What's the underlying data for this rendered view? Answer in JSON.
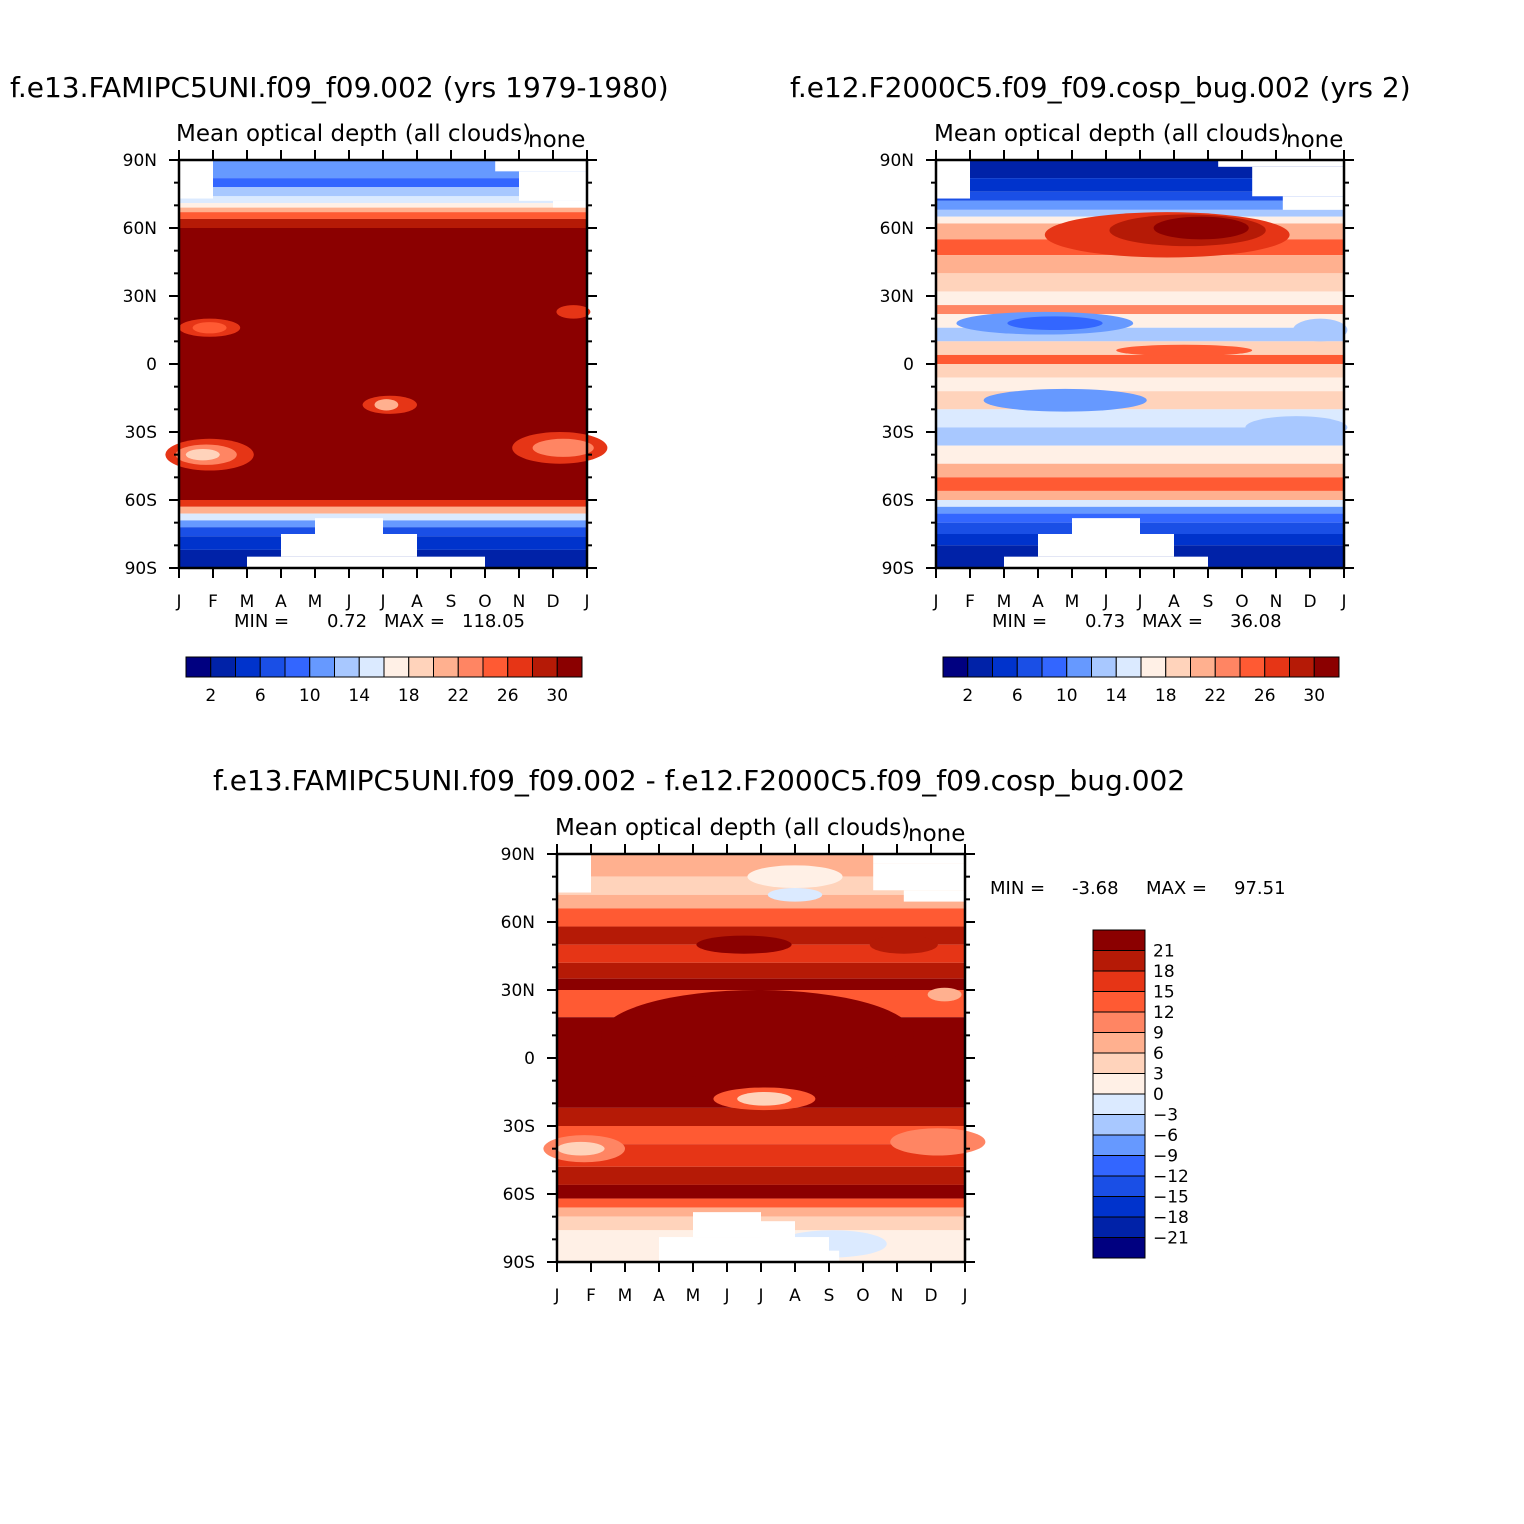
{
  "chart_data": [
    {
      "type": "heatmap",
      "title": "f.e13.FAMIPC5UNI.f09_f09.002 (yrs 1979-1980)",
      "subtitle": "Mean optical depth (all clouds)",
      "units": "none",
      "x_labels": [
        "J",
        "F",
        "M",
        "A",
        "M",
        "J",
        "J",
        "A",
        "S",
        "O",
        "N",
        "D",
        "J"
      ],
      "y_labels": [
        "90N",
        "60N",
        "30N",
        "0",
        "30S",
        "60S",
        "90S"
      ],
      "ylim": [
        -90,
        90
      ],
      "min_text": "MIN =",
      "min_value": "0.72",
      "max_text": "MAX =",
      "max_value": "118.05",
      "colorbar_ticks": [
        "2",
        "6",
        "10",
        "14",
        "18",
        "22",
        "26",
        "30"
      ],
      "colorbar_levels": [
        2,
        4,
        6,
        8,
        10,
        12,
        14,
        16,
        18,
        20,
        22,
        24,
        26,
        28,
        30
      ]
    },
    {
      "type": "heatmap",
      "title": "f.e12.F2000C5.f09_f09.cosp_bug.002 (yrs 2)",
      "subtitle": "Mean optical depth (all clouds)",
      "units": "none",
      "x_labels": [
        "J",
        "F",
        "M",
        "A",
        "M",
        "J",
        "J",
        "A",
        "S",
        "O",
        "N",
        "D",
        "J"
      ],
      "y_labels": [
        "90N",
        "60N",
        "30N",
        "0",
        "30S",
        "60S",
        "90S"
      ],
      "ylim": [
        -90,
        90
      ],
      "min_text": "MIN =",
      "min_value": "0.73",
      "max_text": "MAX =",
      "max_value": "36.08",
      "colorbar_ticks": [
        "2",
        "6",
        "10",
        "14",
        "18",
        "22",
        "26",
        "30"
      ],
      "colorbar_levels": [
        2,
        4,
        6,
        8,
        10,
        12,
        14,
        16,
        18,
        20,
        22,
        24,
        26,
        28,
        30
      ]
    },
    {
      "type": "heatmap",
      "title": "f.e13.FAMIPC5UNI.f09_f09.002 - f.e12.F2000C5.f09_f09.cosp_bug.002",
      "subtitle": "Mean optical depth (all clouds)",
      "units": "none",
      "x_labels": [
        "J",
        "F",
        "M",
        "A",
        "M",
        "J",
        "J",
        "A",
        "S",
        "O",
        "N",
        "D",
        "J"
      ],
      "y_labels": [
        "90N",
        "60N",
        "30N",
        "0",
        "30S",
        "60S",
        "90S"
      ],
      "ylim": [
        -90,
        90
      ],
      "min_text": "MIN =",
      "min_value": "-3.68",
      "max_text": "MAX =",
      "max_value": "97.51",
      "colorbar_ticks": [
        "21",
        "18",
        "15",
        "12",
        "9",
        "6",
        "3",
        "0",
        "−3",
        "−6",
        "−9",
        "−12",
        "−15",
        "−18",
        "−21"
      ]
    }
  ],
  "colors": {
    "levels16": [
      "#000080",
      "#0022a8",
      "#0033cc",
      "#1a4fe6",
      "#3366ff",
      "#6699ff",
      "#a8c8ff",
      "#dbeaff",
      "#fff0e6",
      "#ffd3bb",
      "#ffb08f",
      "#ff8563",
      "#ff5a33",
      "#e63516",
      "#b51a06",
      "#8b0000"
    ],
    "diff_boxes": [
      "#8b0000",
      "#b51a06",
      "#e63516",
      "#ff5a33",
      "#ff8563",
      "#ffb08f",
      "#ffd3bb",
      "#fff0e6",
      "#dbeaff",
      "#a8c8ff",
      "#6699ff",
      "#3366ff",
      "#1a4fe6",
      "#0033cc",
      "#0022a8",
      "#000080"
    ]
  }
}
